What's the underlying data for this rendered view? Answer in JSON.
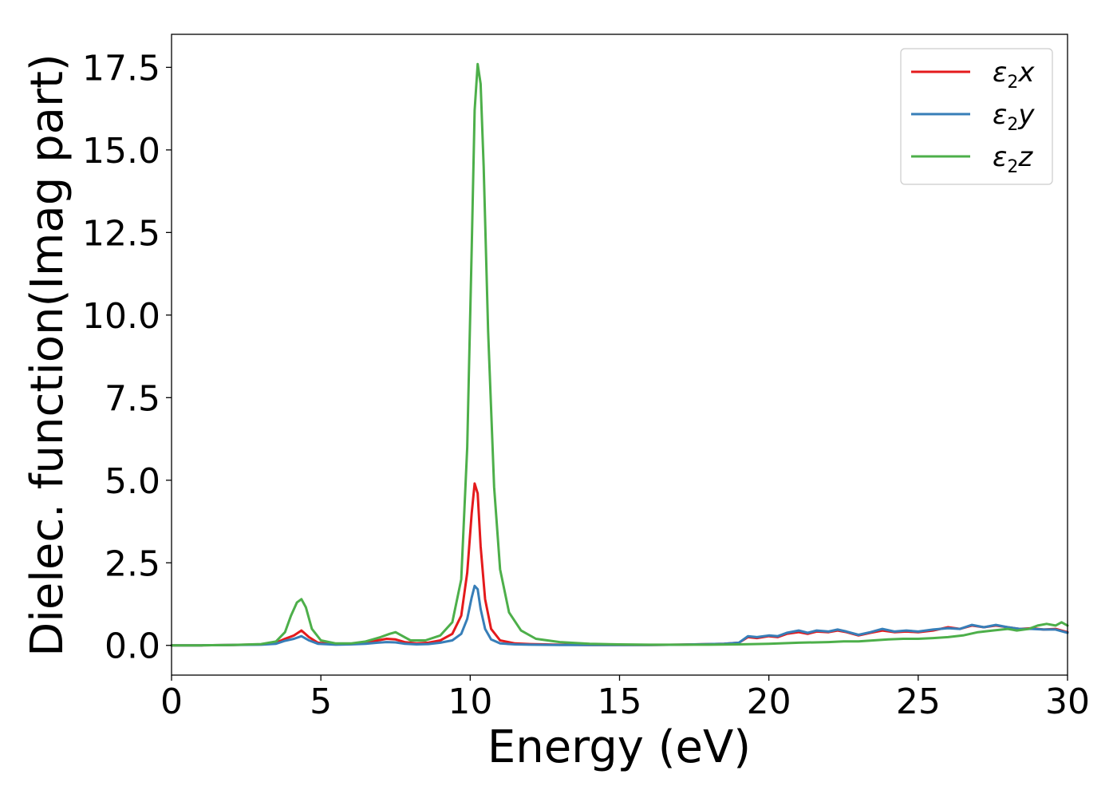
{
  "chart_data": {
    "type": "line",
    "title": "",
    "xlabel": "Energy (eV)",
    "ylabel": "Dielec. function(Imag part)",
    "xlim": [
      0,
      30
    ],
    "ylim": [
      -0.9,
      18.5
    ],
    "xticks": [
      0,
      5,
      10,
      15,
      20,
      25,
      30
    ],
    "xtick_labels": [
      "0",
      "5",
      "10",
      "15",
      "20",
      "25",
      "30"
    ],
    "yticks": [
      0,
      2.5,
      5,
      7.5,
      10,
      12.5,
      15,
      17.5
    ],
    "ytick_labels": [
      "0.0",
      "2.5",
      "5.0",
      "7.5",
      "10.0",
      "12.5",
      "15.0",
      "17.5"
    ],
    "grid": false,
    "legend_position": "top-right",
    "series": [
      {
        "name": "ε2x",
        "legend_base": "ε",
        "legend_sub": "2",
        "legend_axis": "x",
        "color": "#e41a1c",
        "x": [
          0,
          1,
          2,
          3,
          3.5,
          3.8,
          4.1,
          4.35,
          4.6,
          4.9,
          5.5,
          6,
          6.5,
          6.9,
          7.2,
          7.5,
          7.8,
          8.2,
          8.6,
          9,
          9.4,
          9.7,
          9.9,
          10.05,
          10.15,
          10.25,
          10.35,
          10.5,
          10.7,
          11,
          11.5,
          12,
          13,
          14,
          15,
          16,
          17,
          18,
          18.5,
          19,
          19.3,
          19.6,
          20,
          20.3,
          20.6,
          21,
          21.3,
          21.6,
          22,
          22.3,
          22.6,
          23,
          23.4,
          23.8,
          24.2,
          24.6,
          25,
          25.5,
          26,
          26.4,
          26.8,
          27.2,
          27.6,
          28,
          28.4,
          28.8,
          29.2,
          29.6,
          30
        ],
        "y": [
          0,
          0,
          0.01,
          0.03,
          0.08,
          0.2,
          0.3,
          0.45,
          0.25,
          0.08,
          0.03,
          0.04,
          0.08,
          0.15,
          0.2,
          0.18,
          0.1,
          0.06,
          0.08,
          0.15,
          0.35,
          0.9,
          2.2,
          4.0,
          4.9,
          4.6,
          3.0,
          1.4,
          0.5,
          0.15,
          0.06,
          0.04,
          0.02,
          0.01,
          0.01,
          0.01,
          0.02,
          0.04,
          0.05,
          0.08,
          0.25,
          0.22,
          0.28,
          0.25,
          0.35,
          0.4,
          0.35,
          0.42,
          0.4,
          0.45,
          0.4,
          0.3,
          0.38,
          0.45,
          0.4,
          0.42,
          0.4,
          0.45,
          0.55,
          0.5,
          0.6,
          0.55,
          0.6,
          0.55,
          0.5,
          0.52,
          0.48,
          0.5,
          0.4
        ]
      },
      {
        "name": "ε2y",
        "legend_base": "ε",
        "legend_sub": "2",
        "legend_axis": "y",
        "color": "#377eb8",
        "x": [
          0,
          1,
          2,
          3,
          3.5,
          3.8,
          4.1,
          4.35,
          4.6,
          4.9,
          5.5,
          6,
          6.5,
          6.9,
          7.2,
          7.5,
          7.8,
          8.2,
          8.6,
          9,
          9.4,
          9.7,
          9.9,
          10.05,
          10.15,
          10.25,
          10.35,
          10.5,
          10.7,
          11,
          11.5,
          12,
          13,
          14,
          15,
          16,
          17,
          18,
          18.5,
          19,
          19.3,
          19.6,
          20,
          20.3,
          20.6,
          21,
          21.3,
          21.6,
          22,
          22.3,
          22.6,
          23,
          23.4,
          23.8,
          24.2,
          24.6,
          25,
          25.5,
          26,
          26.4,
          26.8,
          27.2,
          27.6,
          28,
          28.4,
          28.8,
          29.2,
          29.6,
          30
        ],
        "y": [
          0,
          0,
          0.01,
          0.02,
          0.05,
          0.14,
          0.2,
          0.28,
          0.15,
          0.05,
          0.02,
          0.03,
          0.05,
          0.08,
          0.1,
          0.09,
          0.05,
          0.03,
          0.04,
          0.08,
          0.15,
          0.35,
          0.8,
          1.45,
          1.8,
          1.7,
          1.1,
          0.5,
          0.18,
          0.06,
          0.03,
          0.02,
          0.01,
          0.01,
          0.01,
          0.01,
          0.02,
          0.04,
          0.05,
          0.08,
          0.28,
          0.25,
          0.3,
          0.28,
          0.38,
          0.45,
          0.38,
          0.45,
          0.42,
          0.48,
          0.42,
          0.32,
          0.4,
          0.5,
          0.42,
          0.45,
          0.42,
          0.48,
          0.52,
          0.5,
          0.62,
          0.55,
          0.62,
          0.55,
          0.5,
          0.5,
          0.48,
          0.48,
          0.38
        ]
      },
      {
        "name": "ε2z",
        "legend_base": "ε",
        "legend_sub": "2",
        "legend_axis": "z",
        "color": "#4daf4a",
        "x": [
          0,
          1,
          2,
          3,
          3.5,
          3.8,
          4.0,
          4.2,
          4.35,
          4.5,
          4.7,
          5.0,
          5.5,
          6,
          6.5,
          7.0,
          7.3,
          7.5,
          7.7,
          8.0,
          8.5,
          9.0,
          9.4,
          9.7,
          9.9,
          10.05,
          10.15,
          10.25,
          10.35,
          10.45,
          10.6,
          10.8,
          11.0,
          11.3,
          11.7,
          12.2,
          13,
          14,
          15,
          16,
          17,
          18,
          19,
          20,
          21,
          22,
          22.5,
          23,
          23.5,
          24,
          24.5,
          25,
          25.5,
          26,
          26.5,
          27,
          27.5,
          28,
          28.3,
          28.7,
          29,
          29.3,
          29.6,
          29.8,
          30
        ],
        "y": [
          0,
          0,
          0.01,
          0.04,
          0.12,
          0.4,
          0.9,
          1.3,
          1.4,
          1.15,
          0.5,
          0.15,
          0.06,
          0.06,
          0.12,
          0.25,
          0.35,
          0.4,
          0.3,
          0.15,
          0.15,
          0.3,
          0.7,
          2.0,
          6.0,
          12.0,
          16.2,
          17.6,
          17.0,
          14.5,
          9.5,
          4.8,
          2.3,
          1.0,
          0.45,
          0.2,
          0.1,
          0.05,
          0.03,
          0.02,
          0.02,
          0.02,
          0.03,
          0.05,
          0.08,
          0.1,
          0.12,
          0.12,
          0.15,
          0.18,
          0.2,
          0.2,
          0.22,
          0.25,
          0.3,
          0.4,
          0.45,
          0.5,
          0.45,
          0.5,
          0.6,
          0.65,
          0.6,
          0.7,
          0.6
        ]
      }
    ]
  }
}
